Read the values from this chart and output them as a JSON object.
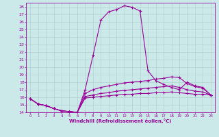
{
  "xlabel": "Windchill (Refroidissement éolien,°C)",
  "bg_color": "#cce9e9",
  "line_color": "#990099",
  "xlim": [
    -0.5,
    23.5
  ],
  "ylim": [
    14,
    28.5
  ],
  "xticks": [
    0,
    1,
    2,
    3,
    4,
    5,
    6,
    7,
    8,
    9,
    10,
    11,
    12,
    13,
    14,
    15,
    16,
    17,
    18,
    19,
    20,
    21,
    22,
    23
  ],
  "yticks": [
    14,
    15,
    16,
    17,
    18,
    19,
    20,
    21,
    22,
    23,
    24,
    25,
    26,
    27,
    28
  ],
  "series": [
    [
      15.8,
      15.1,
      14.9,
      14.5,
      14.2,
      14.1,
      14.0,
      17.0,
      21.5,
      26.2,
      27.3,
      27.6,
      28.1,
      27.9,
      27.4,
      19.5,
      18.2,
      17.7,
      17.3,
      17.0,
      18.0,
      17.5,
      17.3,
      16.3
    ],
    [
      15.8,
      15.1,
      14.9,
      14.5,
      14.2,
      14.1,
      14.0,
      16.5,
      17.0,
      17.3,
      17.5,
      17.7,
      17.9,
      18.0,
      18.1,
      18.2,
      18.4,
      18.5,
      18.7,
      18.6,
      17.8,
      17.4,
      17.2,
      16.3
    ],
    [
      15.8,
      15.1,
      14.9,
      14.5,
      14.2,
      14.1,
      14.0,
      16.1,
      16.3,
      16.5,
      16.6,
      16.8,
      16.9,
      17.0,
      17.1,
      17.2,
      17.3,
      17.4,
      17.5,
      17.3,
      17.0,
      16.8,
      16.7,
      16.3
    ],
    [
      15.8,
      15.1,
      14.9,
      14.5,
      14.2,
      14.1,
      14.0,
      15.9,
      16.0,
      16.1,
      16.2,
      16.3,
      16.4,
      16.4,
      16.5,
      16.5,
      16.6,
      16.6,
      16.7,
      16.6,
      16.5,
      16.4,
      16.4,
      16.3
    ]
  ]
}
